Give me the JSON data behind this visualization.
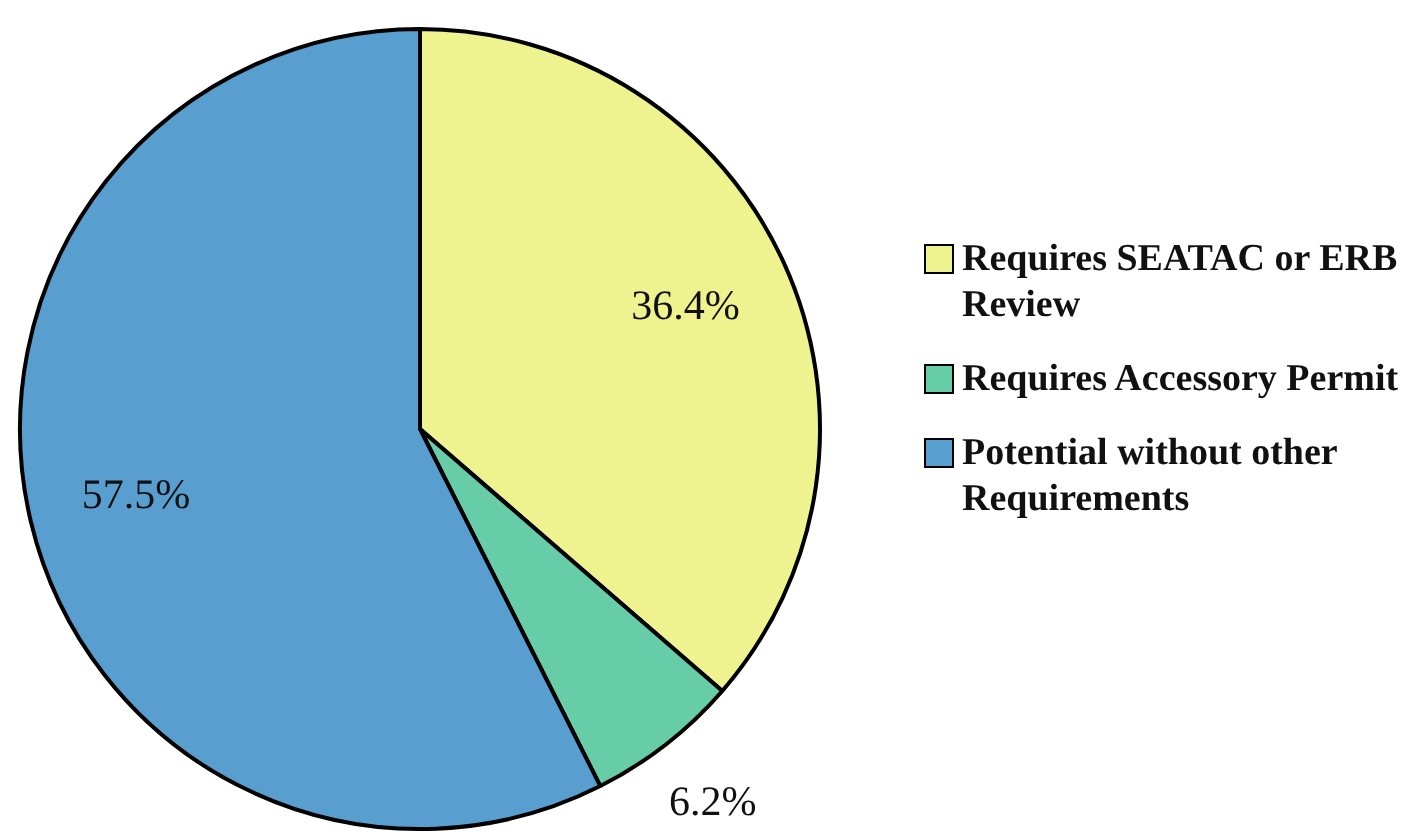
{
  "chart_data": {
    "type": "pie",
    "categories": [
      "Requires SEATAC or ERB Review",
      "Requires Accessory Permit",
      "Potential without other Requirements"
    ],
    "values": [
      36.4,
      6.2,
      57.5
    ],
    "colors": [
      "#eef28f",
      "#66cda8",
      "#589fd0"
    ],
    "value_labels": [
      "36.4%",
      "6.2%",
      "57.5%"
    ],
    "legend": "right"
  }
}
